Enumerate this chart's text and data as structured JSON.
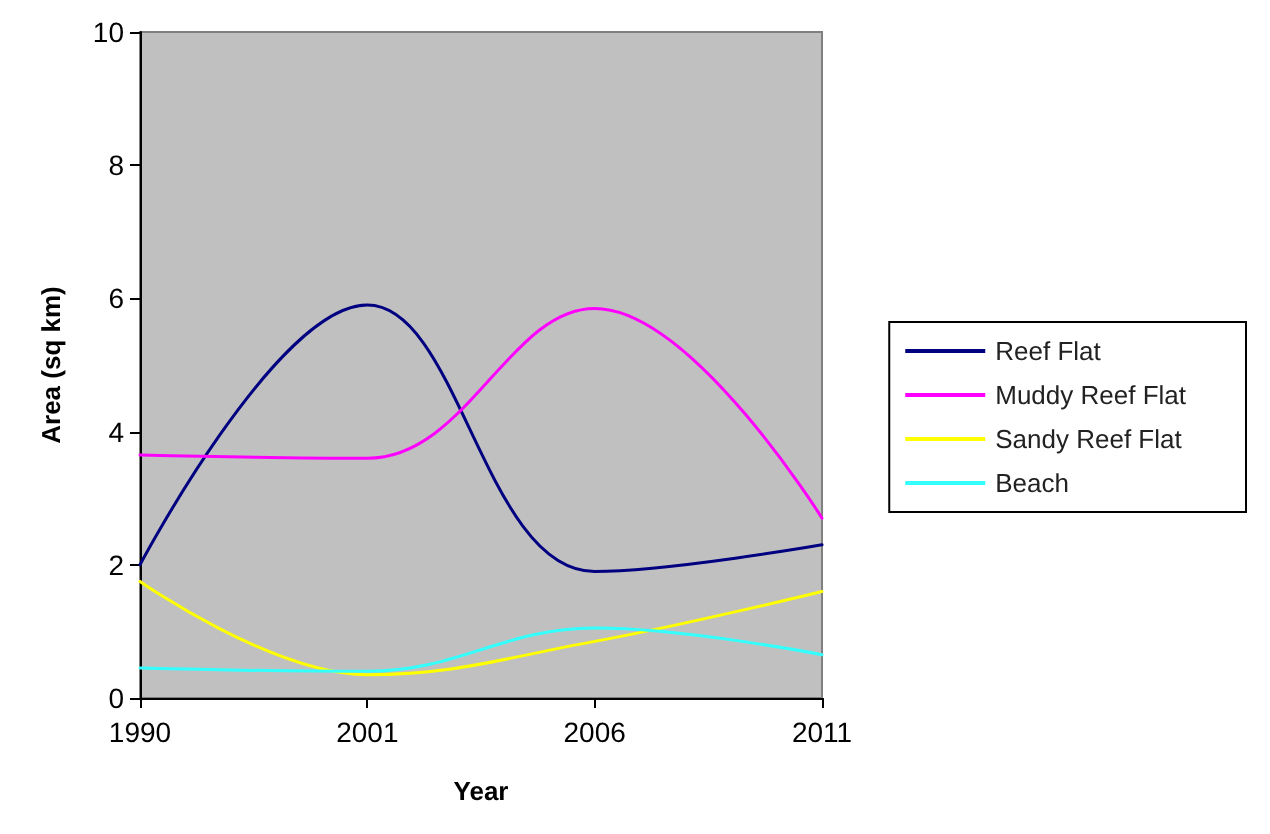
{
  "chart_data": {
    "type": "line",
    "xlabel": "Year",
    "ylabel": "Area (sq km)",
    "categories": [
      "1990",
      "2001",
      "2006",
      "2011"
    ],
    "series": [
      {
        "name": "Reef Flat",
        "color": "#000080",
        "values": [
          2.0,
          5.9,
          1.9,
          2.3
        ]
      },
      {
        "name": "Muddy Reef Flat",
        "color": "#ff00ff",
        "values": [
          3.65,
          3.6,
          5.85,
          2.7
        ]
      },
      {
        "name": "Sandy Reef Flat",
        "color": "#ffff00",
        "values": [
          1.75,
          0.35,
          0.85,
          1.6
        ]
      },
      {
        "name": "Beach",
        "color": "#33ffff",
        "values": [
          0.45,
          0.4,
          1.05,
          0.65
        ]
      }
    ],
    "ylim": [
      0,
      10
    ],
    "yticks": [
      0,
      2,
      4,
      6,
      8,
      10
    ],
    "grid": false,
    "legend": "right",
    "marker": "none",
    "line_style": "solid"
  }
}
